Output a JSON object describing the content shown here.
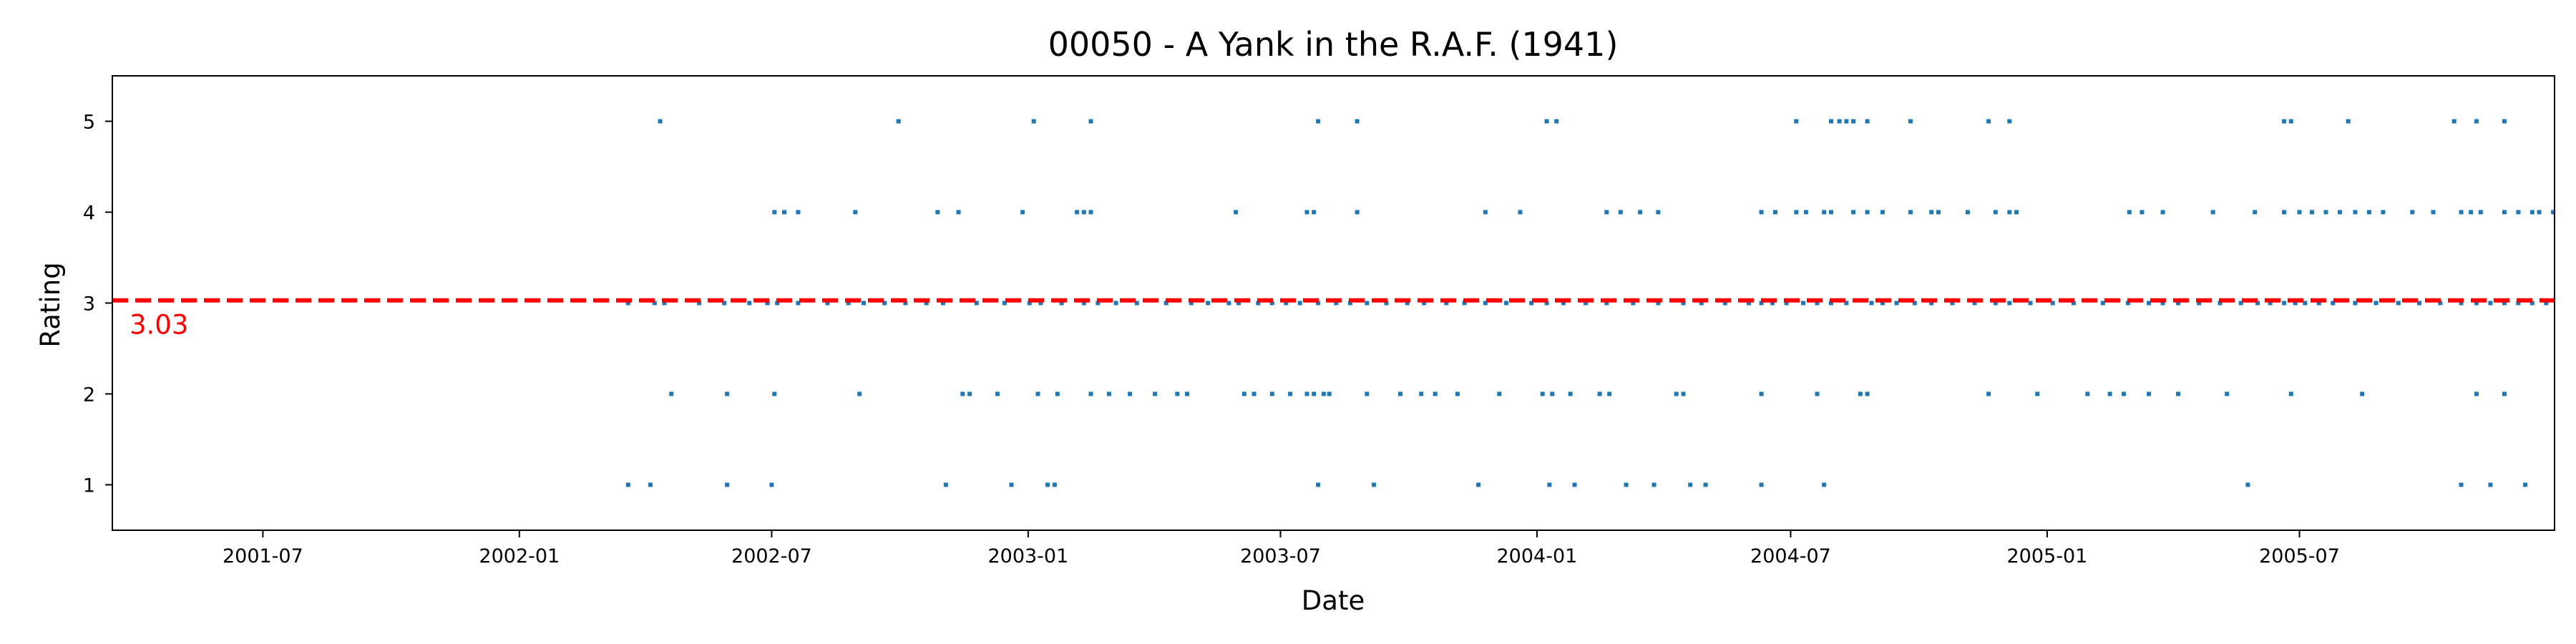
{
  "chart_data": {
    "type": "scatter",
    "title": "00050 - A Yank in the R.A.F. (1941)",
    "xlabel": "Date",
    "ylabel": "Rating",
    "xlim": [
      "2001-03-15",
      "2005-12-31"
    ],
    "ylim": [
      0.5,
      5.5
    ],
    "x_ticks": [
      "2001-07",
      "2002-01",
      "2002-07",
      "2003-01",
      "2003-07",
      "2004-01",
      "2004-07",
      "2005-01",
      "2005-07"
    ],
    "y_ticks": [
      1,
      2,
      3,
      4,
      5
    ],
    "grid": false,
    "legend": "none",
    "mean_line": {
      "value": 3.03,
      "label": "3.03",
      "color": "#ff0000",
      "style": "dashed"
    },
    "marker_color": "#1f77b4",
    "series": [
      {
        "points": [
          [
            "2002-03-20",
            1
          ],
          [
            "2002-04-05",
            1
          ],
          [
            "2002-05-30",
            1
          ],
          [
            "2002-07-01",
            1
          ],
          [
            "2002-11-03",
            1
          ],
          [
            "2002-12-20",
            1
          ],
          [
            "2003-01-15",
            1
          ],
          [
            "2003-01-20",
            1
          ],
          [
            "2003-07-28",
            1
          ],
          [
            "2003-09-06",
            1
          ],
          [
            "2003-11-20",
            1
          ],
          [
            "2004-01-10",
            1
          ],
          [
            "2004-01-28",
            1
          ],
          [
            "2004-03-05",
            1
          ],
          [
            "2004-03-25",
            1
          ],
          [
            "2004-04-20",
            1
          ],
          [
            "2004-05-01",
            1
          ],
          [
            "2004-06-10",
            1
          ],
          [
            "2004-07-25",
            1
          ],
          [
            "2005-05-25",
            1
          ],
          [
            "2005-10-25",
            1
          ],
          [
            "2005-11-15",
            1
          ],
          [
            "2005-12-10",
            1
          ],
          [
            "2002-04-20",
            2
          ],
          [
            "2002-05-30",
            2
          ],
          [
            "2002-07-03",
            2
          ],
          [
            "2002-09-02",
            2
          ],
          [
            "2002-11-15",
            2
          ],
          [
            "2002-11-20",
            2
          ],
          [
            "2002-12-10",
            2
          ],
          [
            "2003-01-08",
            2
          ],
          [
            "2003-01-22",
            2
          ],
          [
            "2003-02-15",
            2
          ],
          [
            "2003-02-28",
            2
          ],
          [
            "2003-03-15",
            2
          ],
          [
            "2003-04-02",
            2
          ],
          [
            "2003-04-18",
            2
          ],
          [
            "2003-04-25",
            2
          ],
          [
            "2003-06-05",
            2
          ],
          [
            "2003-06-12",
            2
          ],
          [
            "2003-06-25",
            2
          ],
          [
            "2003-07-08",
            2
          ],
          [
            "2003-07-20",
            2
          ],
          [
            "2003-07-25",
            2
          ],
          [
            "2003-08-01",
            2
          ],
          [
            "2003-08-05",
            2
          ],
          [
            "2003-09-01",
            2
          ],
          [
            "2003-09-25",
            2
          ],
          [
            "2003-10-10",
            2
          ],
          [
            "2003-10-20",
            2
          ],
          [
            "2003-11-05",
            2
          ],
          [
            "2003-12-05",
            2
          ],
          [
            "2004-01-05",
            2
          ],
          [
            "2004-01-12",
            2
          ],
          [
            "2004-01-25",
            2
          ],
          [
            "2004-02-15",
            2
          ],
          [
            "2004-02-22",
            2
          ],
          [
            "2004-04-10",
            2
          ],
          [
            "2004-04-15",
            2
          ],
          [
            "2004-06-10",
            2
          ],
          [
            "2004-07-20",
            2
          ],
          [
            "2004-08-20",
            2
          ],
          [
            "2004-08-25",
            2
          ],
          [
            "2004-11-20",
            2
          ],
          [
            "2004-12-25",
            2
          ],
          [
            "2005-01-30",
            2
          ],
          [
            "2005-02-15",
            2
          ],
          [
            "2005-02-25",
            2
          ],
          [
            "2005-03-15",
            2
          ],
          [
            "2005-04-05",
            2
          ],
          [
            "2005-05-10",
            2
          ],
          [
            "2005-06-25",
            2
          ],
          [
            "2005-08-15",
            2
          ],
          [
            "2005-11-05",
            2
          ],
          [
            "2005-11-25",
            2
          ],
          [
            "2002-03-20",
            3
          ],
          [
            "2002-04-08",
            3
          ],
          [
            "2002-04-15",
            3
          ],
          [
            "2002-05-10",
            3
          ],
          [
            "2002-05-28",
            3
          ],
          [
            "2002-06-15",
            3
          ],
          [
            "2002-06-28",
            3
          ],
          [
            "2002-07-05",
            3
          ],
          [
            "2002-07-20",
            3
          ],
          [
            "2002-08-10",
            3
          ],
          [
            "2002-08-25",
            3
          ],
          [
            "2002-09-05",
            3
          ],
          [
            "2002-09-20",
            3
          ],
          [
            "2002-10-05",
            3
          ],
          [
            "2002-10-20",
            3
          ],
          [
            "2002-11-01",
            3
          ],
          [
            "2002-11-25",
            3
          ],
          [
            "2002-12-15",
            3
          ],
          [
            "2003-01-02",
            3
          ],
          [
            "2003-01-10",
            3
          ],
          [
            "2003-01-25",
            3
          ],
          [
            "2003-02-10",
            3
          ],
          [
            "2003-02-20",
            3
          ],
          [
            "2003-03-05",
            3
          ],
          [
            "2003-03-20",
            3
          ],
          [
            "2003-04-10",
            3
          ],
          [
            "2003-04-28",
            3
          ],
          [
            "2003-05-10",
            3
          ],
          [
            "2003-05-25",
            3
          ],
          [
            "2003-06-01",
            3
          ],
          [
            "2003-06-15",
            3
          ],
          [
            "2003-06-25",
            3
          ],
          [
            "2003-07-05",
            3
          ],
          [
            "2003-07-15",
            3
          ],
          [
            "2003-07-28",
            3
          ],
          [
            "2003-08-10",
            3
          ],
          [
            "2003-08-20",
            3
          ],
          [
            "2003-09-01",
            3
          ],
          [
            "2003-09-15",
            3
          ],
          [
            "2003-09-30",
            3
          ],
          [
            "2003-10-12",
            3
          ],
          [
            "2003-10-28",
            3
          ],
          [
            "2003-11-10",
            3
          ],
          [
            "2003-11-25",
            3
          ],
          [
            "2003-12-10",
            3
          ],
          [
            "2003-12-28",
            3
          ],
          [
            "2004-01-08",
            3
          ],
          [
            "2004-01-20",
            3
          ],
          [
            "2004-02-05",
            3
          ],
          [
            "2004-02-20",
            3
          ],
          [
            "2004-03-10",
            3
          ],
          [
            "2004-03-28",
            3
          ],
          [
            "2004-04-15",
            3
          ],
          [
            "2004-04-28",
            3
          ],
          [
            "2004-05-15",
            3
          ],
          [
            "2004-06-01",
            3
          ],
          [
            "2004-06-10",
            3
          ],
          [
            "2004-06-18",
            3
          ],
          [
            "2004-06-28",
            3
          ],
          [
            "2004-07-10",
            3
          ],
          [
            "2004-07-20",
            3
          ],
          [
            "2004-07-30",
            3
          ],
          [
            "2004-08-10",
            3
          ],
          [
            "2004-08-28",
            3
          ],
          [
            "2004-09-05",
            3
          ],
          [
            "2004-09-15",
            3
          ],
          [
            "2004-09-28",
            3
          ],
          [
            "2004-10-10",
            3
          ],
          [
            "2004-10-25",
            3
          ],
          [
            "2004-11-10",
            3
          ],
          [
            "2004-11-25",
            3
          ],
          [
            "2004-12-05",
            3
          ],
          [
            "2004-12-20",
            3
          ],
          [
            "2005-01-05",
            3
          ],
          [
            "2005-01-20",
            3
          ],
          [
            "2005-02-10",
            3
          ],
          [
            "2005-02-28",
            3
          ],
          [
            "2005-03-15",
            3
          ],
          [
            "2005-03-25",
            3
          ],
          [
            "2005-04-05",
            3
          ],
          [
            "2005-04-20",
            3
          ],
          [
            "2005-05-05",
            3
          ],
          [
            "2005-05-20",
            3
          ],
          [
            "2005-06-01",
            3
          ],
          [
            "2005-06-10",
            3
          ],
          [
            "2005-06-20",
            3
          ],
          [
            "2005-06-28",
            3
          ],
          [
            "2005-07-05",
            3
          ],
          [
            "2005-07-15",
            3
          ],
          [
            "2005-07-25",
            3
          ],
          [
            "2005-08-10",
            3
          ],
          [
            "2005-08-25",
            3
          ],
          [
            "2005-09-10",
            3
          ],
          [
            "2005-09-25",
            3
          ],
          [
            "2005-10-10",
            3
          ],
          [
            "2005-10-25",
            3
          ],
          [
            "2005-11-05",
            3
          ],
          [
            "2005-11-15",
            3
          ],
          [
            "2005-11-25",
            3
          ],
          [
            "2005-12-05",
            3
          ],
          [
            "2005-12-15",
            3
          ],
          [
            "2005-12-25",
            3
          ],
          [
            "2002-07-03",
            4
          ],
          [
            "2002-07-10",
            4
          ],
          [
            "2002-07-20",
            4
          ],
          [
            "2002-08-30",
            4
          ],
          [
            "2002-10-28",
            4
          ],
          [
            "2002-11-12",
            4
          ],
          [
            "2002-12-28",
            4
          ],
          [
            "2003-02-05",
            4
          ],
          [
            "2003-02-10",
            4
          ],
          [
            "2003-02-15",
            4
          ],
          [
            "2003-05-30",
            4
          ],
          [
            "2003-07-20",
            4
          ],
          [
            "2003-07-25",
            4
          ],
          [
            "2003-08-25",
            4
          ],
          [
            "2003-11-25",
            4
          ],
          [
            "2003-12-20",
            4
          ],
          [
            "2004-02-20",
            4
          ],
          [
            "2004-03-01",
            4
          ],
          [
            "2004-03-15",
            4
          ],
          [
            "2004-03-28",
            4
          ],
          [
            "2004-06-10",
            4
          ],
          [
            "2004-06-20",
            4
          ],
          [
            "2004-07-05",
            4
          ],
          [
            "2004-07-12",
            4
          ],
          [
            "2004-07-25",
            4
          ],
          [
            "2004-07-30",
            4
          ],
          [
            "2004-08-15",
            4
          ],
          [
            "2004-08-25",
            4
          ],
          [
            "2004-09-05",
            4
          ],
          [
            "2004-09-25",
            4
          ],
          [
            "2004-10-10",
            4
          ],
          [
            "2004-10-15",
            4
          ],
          [
            "2004-11-05",
            4
          ],
          [
            "2004-11-25",
            4
          ],
          [
            "2004-12-05",
            4
          ],
          [
            "2004-12-10",
            4
          ],
          [
            "2005-03-01",
            4
          ],
          [
            "2005-03-10",
            4
          ],
          [
            "2005-03-25",
            4
          ],
          [
            "2005-04-30",
            4
          ],
          [
            "2005-05-30",
            4
          ],
          [
            "2005-06-20",
            4
          ],
          [
            "2005-07-01",
            4
          ],
          [
            "2005-07-10",
            4
          ],
          [
            "2005-07-20",
            4
          ],
          [
            "2005-07-30",
            4
          ],
          [
            "2005-08-10",
            4
          ],
          [
            "2005-08-20",
            4
          ],
          [
            "2005-08-30",
            4
          ],
          [
            "2005-09-20",
            4
          ],
          [
            "2005-10-05",
            4
          ],
          [
            "2005-10-25",
            4
          ],
          [
            "2005-11-01",
            4
          ],
          [
            "2005-11-08",
            4
          ],
          [
            "2005-11-25",
            4
          ],
          [
            "2005-12-05",
            4
          ],
          [
            "2005-12-15",
            4
          ],
          [
            "2005-12-20",
            4
          ],
          [
            "2005-12-30",
            4
          ],
          [
            "2002-04-12",
            5
          ],
          [
            "2002-09-30",
            5
          ],
          [
            "2003-01-05",
            5
          ],
          [
            "2003-02-15",
            5
          ],
          [
            "2003-07-28",
            5
          ],
          [
            "2003-08-25",
            5
          ],
          [
            "2004-01-08",
            5
          ],
          [
            "2004-01-15",
            5
          ],
          [
            "2004-07-05",
            5
          ],
          [
            "2004-07-30",
            5
          ],
          [
            "2004-08-05",
            5
          ],
          [
            "2004-08-10",
            5
          ],
          [
            "2004-08-15",
            5
          ],
          [
            "2004-08-25",
            5
          ],
          [
            "2004-09-25",
            5
          ],
          [
            "2004-11-20",
            5
          ],
          [
            "2004-12-05",
            5
          ],
          [
            "2005-06-20",
            5
          ],
          [
            "2005-06-25",
            5
          ],
          [
            "2005-08-05",
            5
          ],
          [
            "2005-10-20",
            5
          ],
          [
            "2005-11-05",
            5
          ],
          [
            "2005-11-25",
            5
          ]
        ]
      }
    ]
  }
}
